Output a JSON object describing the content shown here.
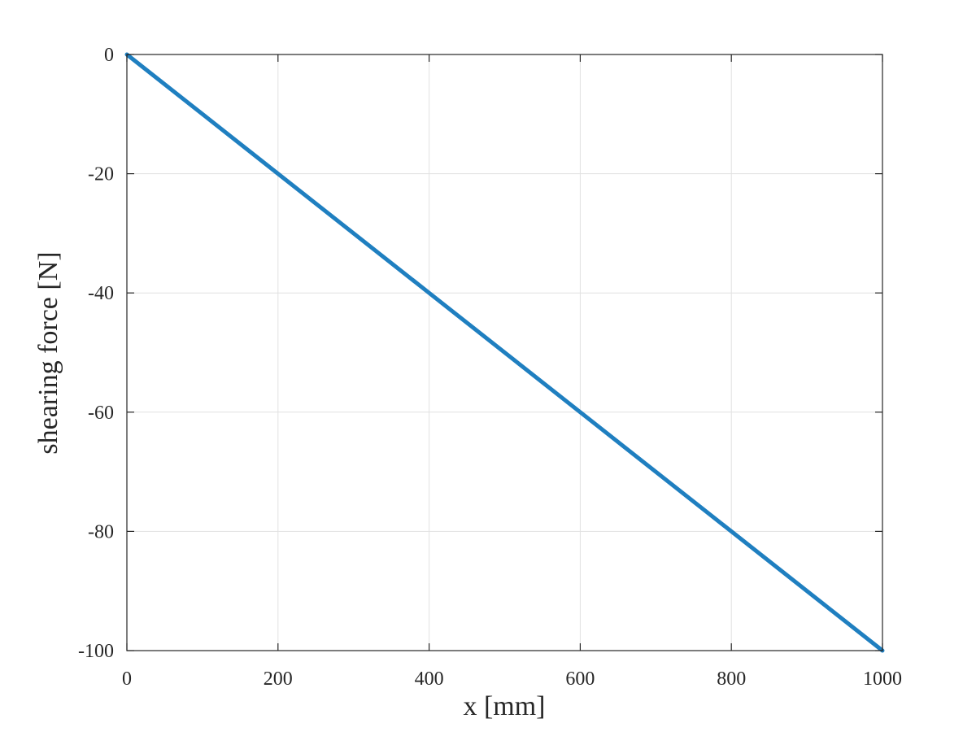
{
  "chart_data": {
    "type": "line",
    "title": "",
    "xlabel": "x [mm]",
    "ylabel": "shearing force [N]",
    "xlim": [
      0,
      1000
    ],
    "ylim": [
      -100,
      0
    ],
    "x_ticks": [
      0,
      200,
      400,
      600,
      800,
      1000
    ],
    "y_ticks": [
      0,
      -20,
      -40,
      -60,
      -80,
      -100
    ],
    "x_tick_labels": [
      "0",
      "200",
      "400",
      "600",
      "800",
      "1000"
    ],
    "y_tick_labels": [
      "0",
      "-20",
      "-40",
      "-60",
      "-80",
      "-100"
    ],
    "grid": true,
    "legend": "none",
    "series": [
      {
        "color": "#1f7fc0",
        "x": [
          0,
          200,
          400,
          600,
          800,
          1000
        ],
        "y": [
          0,
          -20,
          -40,
          -60,
          -80,
          -100
        ]
      }
    ]
  }
}
